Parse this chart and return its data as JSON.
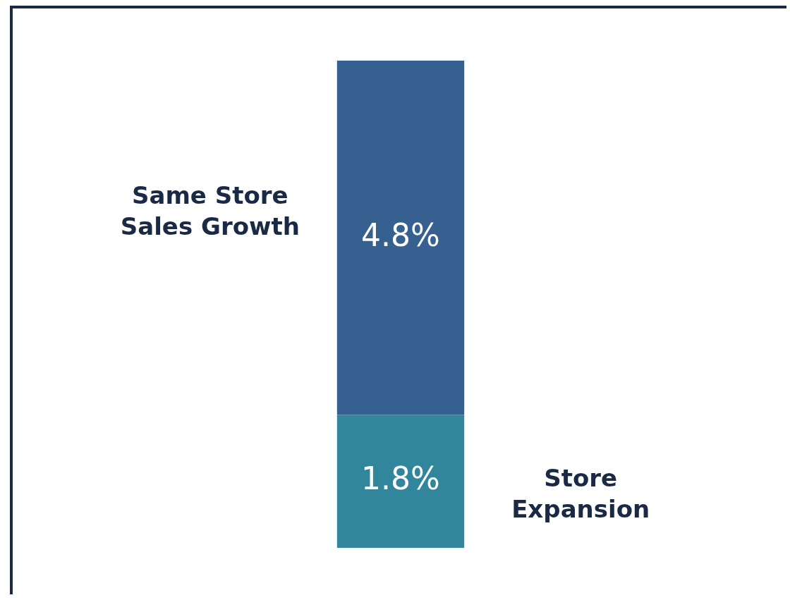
{
  "chart_data": {
    "type": "bar",
    "stacked": true,
    "categories": [
      null
    ],
    "legend": false,
    "series": [
      {
        "name": "Store Expansion",
        "color": "#31869b",
        "values": [
          1.8
        ],
        "value_labels": [
          "1.8%"
        ]
      },
      {
        "name": "Same Store Sales Growth",
        "color": "#36608f",
        "values": [
          4.8
        ],
        "value_labels": [
          "4.8%"
        ]
      }
    ]
  }
}
